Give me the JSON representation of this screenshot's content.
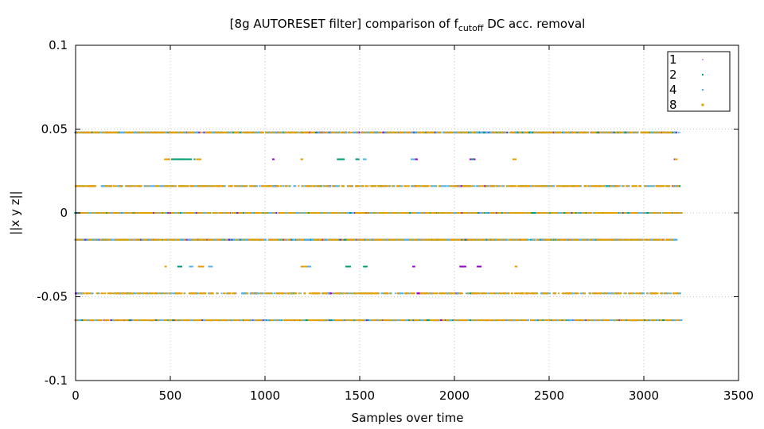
{
  "chart_data": {
    "type": "scatter",
    "title_main": "[8g AUTORESET filter] comparison of f",
    "title_sub": "cutoff",
    "title_rest": " DC acc. removal",
    "xlabel": "Samples over time",
    "ylabel": "||x y z||",
    "xlim": [
      0,
      3500
    ],
    "ylim": [
      -0.1,
      0.1
    ],
    "x_ticks": [
      0,
      500,
      1000,
      1500,
      2000,
      2500,
      3000,
      3500
    ],
    "y_ticks": [
      -0.1,
      -0.05,
      0,
      0.05,
      0.1
    ],
    "x_tick_labels": [
      "0",
      "500",
      "1000",
      "1500",
      "2000",
      "2500",
      "3000",
      "3500"
    ],
    "y_tick_labels": [
      "-0.1",
      "-0.05",
      "0",
      "0.05",
      "0.1"
    ],
    "grid": true,
    "legend_position": "top-right",
    "series": [
      {
        "name": "1",
        "color": "#9400d3",
        "levels": [
          {
            "y": 0.048,
            "ranges": [
              [
                0,
                3190
              ]
            ]
          },
          {
            "y": 0.032,
            "ranges": [
              [
                1040,
                1050
              ],
              [
                1795,
                1805
              ],
              [
                2080,
                2110
              ],
              [
                3160,
                3170
              ]
            ]
          },
          {
            "y": 0.016,
            "ranges": [
              [
                940,
                950
              ],
              [
                1040,
                1060
              ],
              [
                1330,
                1345
              ],
              [
                1790,
                1800
              ],
              [
                2020,
                2040
              ],
              [
                2160,
                2175
              ],
              [
                2840,
                2860
              ],
              [
                3150,
                3160
              ]
            ]
          },
          {
            "y": 0.0,
            "ranges": [
              [
                0,
                3190
              ]
            ]
          },
          {
            "y": -0.016,
            "ranges": [
              [
                0,
                3170
              ]
            ]
          },
          {
            "y": -0.032,
            "ranges": [
              [
                1780,
                1790
              ],
              [
                2030,
                2060
              ],
              [
                2120,
                2140
              ]
            ]
          },
          {
            "y": -0.048,
            "ranges": [
              [
                0,
                20
              ],
              [
                940,
                960
              ],
              [
                1330,
                1350
              ],
              [
                1800,
                1820
              ],
              [
                2000,
                2020
              ]
            ]
          },
          {
            "y": -0.064,
            "ranges": [
              [
                0,
                3190
              ]
            ]
          }
        ]
      },
      {
        "name": "2",
        "color": "#009e73",
        "levels": [
          {
            "y": 0.048,
            "ranges": [
              [
                0,
                3190
              ]
            ]
          },
          {
            "y": 0.032,
            "ranges": [
              [
                500,
                630
              ],
              [
                1380,
                1420
              ],
              [
                1480,
                1500
              ],
              [
                2090,
                2100
              ]
            ]
          },
          {
            "y": 0.016,
            "ranges": [
              [
                230,
                250
              ],
              [
                1280,
                1300
              ],
              [
                1600,
                1620
              ],
              [
                2350,
                2370
              ],
              [
                2800,
                2830
              ],
              [
                3170,
                3190
              ]
            ]
          },
          {
            "y": 0.0,
            "ranges": [
              [
                0,
                3200
              ]
            ]
          },
          {
            "y": -0.016,
            "ranges": [
              [
                0,
                3170
              ]
            ]
          },
          {
            "y": -0.032,
            "ranges": [
              [
                540,
                560
              ],
              [
                1420,
                1450
              ],
              [
                1520,
                1540
              ]
            ]
          },
          {
            "y": -0.048,
            "ranges": [
              [
                270,
                290
              ],
              [
                880,
                900
              ],
              [
                1140,
                1160
              ],
              [
                2080,
                2100
              ],
              [
                2850,
                2870
              ]
            ]
          },
          {
            "y": -0.064,
            "ranges": [
              [
                0,
                3190
              ]
            ]
          }
        ]
      },
      {
        "name": "4",
        "color": "#56b4e9",
        "levels": [
          {
            "y": 0.048,
            "ranges": [
              [
                0,
                3190
              ]
            ]
          },
          {
            "y": 0.032,
            "ranges": [
              [
                1190,
                1200
              ],
              [
                1520,
                1540
              ],
              [
                1770,
                1790
              ]
            ]
          },
          {
            "y": 0.016,
            "ranges": [
              [
                0,
                3190
              ]
            ]
          },
          {
            "y": 0.0,
            "ranges": [
              [
                0,
                3200
              ]
            ]
          },
          {
            "y": -0.016,
            "ranges": [
              [
                0,
                3170
              ]
            ]
          },
          {
            "y": -0.032,
            "ranges": [
              [
                600,
                620
              ],
              [
                700,
                720
              ],
              [
                1220,
                1240
              ]
            ]
          },
          {
            "y": -0.048,
            "ranges": [
              [
                0,
                3190
              ]
            ]
          },
          {
            "y": -0.064,
            "ranges": [
              [
                0,
                3200
              ]
            ]
          }
        ]
      },
      {
        "name": "8",
        "color": "#e69f00",
        "levels": [
          {
            "y": 0.048,
            "ranges": [
              [
                0,
                3190
              ]
            ]
          },
          {
            "y": 0.032,
            "ranges": [
              [
                470,
                500
              ],
              [
                640,
                660
              ],
              [
                1190,
                1200
              ],
              [
                2310,
                2330
              ],
              [
                3165,
                3175
              ]
            ]
          },
          {
            "y": 0.016,
            "ranges": [
              [
                20,
                40
              ],
              [
                0,
                3190
              ]
            ]
          },
          {
            "y": 0.0,
            "ranges": [
              [
                0,
                3200
              ]
            ]
          },
          {
            "y": -0.016,
            "ranges": [
              [
                0,
                3160
              ]
            ]
          },
          {
            "y": -0.032,
            "ranges": [
              [
                470,
                480
              ],
              [
                650,
                680
              ],
              [
                1190,
                1220
              ],
              [
                2320,
                2330
              ]
            ]
          },
          {
            "y": -0.048,
            "ranges": [
              [
                0,
                3190
              ]
            ]
          },
          {
            "y": -0.064,
            "ranges": [
              [
                0,
                3190
              ]
            ]
          }
        ]
      }
    ]
  }
}
